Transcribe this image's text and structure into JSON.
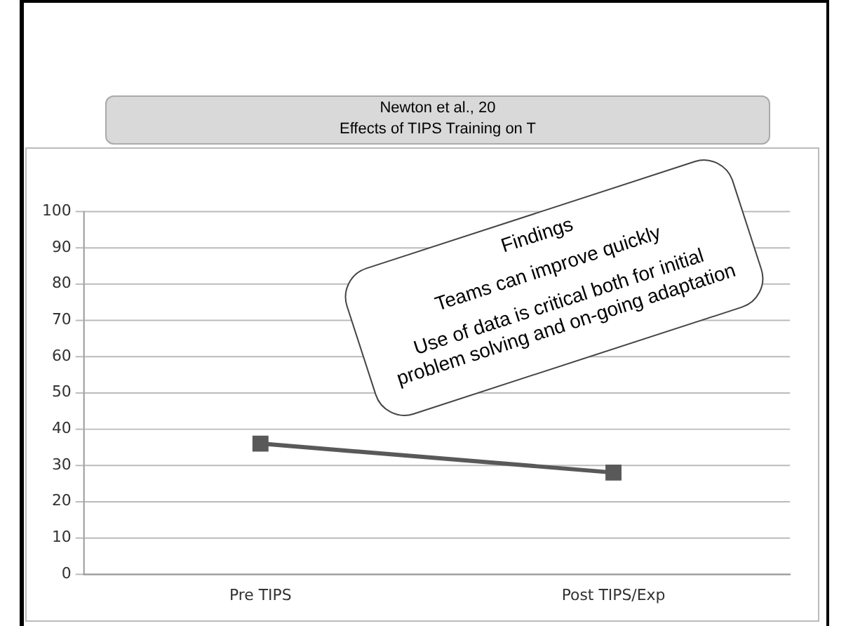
{
  "chart_data": {
    "type": "line",
    "title": [
      "Newton et al., 20",
      "Effects of TIPS Training on T"
    ],
    "annotations": [
      "Findings",
      "Teams can improve quickly",
      "Use of data is critical both for initial problem solving and on-going adaptation"
    ],
    "categories": [
      "Pre TIPS",
      "Post TIPS/Exp"
    ],
    "series": [
      {
        "color": "#595959",
        "values": [
          36,
          28
        ]
      }
    ],
    "ylim": [
      0,
      100
    ],
    "yticks": [
      0,
      10,
      20,
      30,
      40,
      50,
      60,
      70,
      80,
      90,
      100
    ],
    "grid": "y",
    "legend": false,
    "marker": "square",
    "line_style": "solid"
  }
}
